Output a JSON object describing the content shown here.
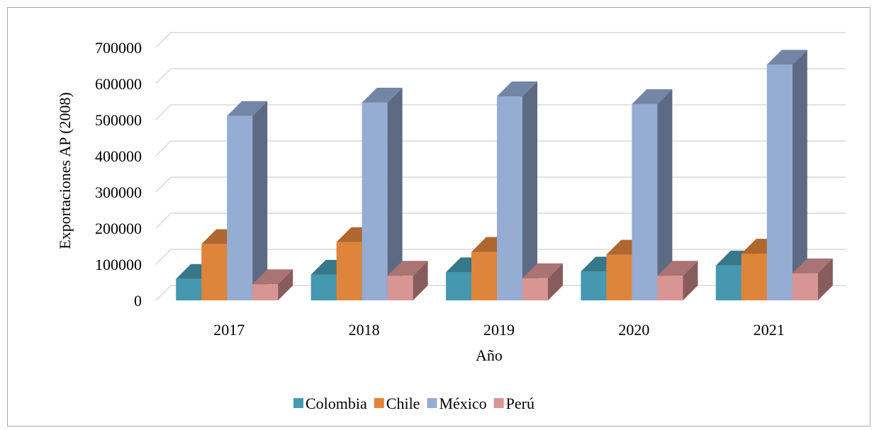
{
  "chart_data": {
    "type": "bar",
    "title": "",
    "xlabel": "Año",
    "ylabel": "Exportaciones AP (2008)",
    "categories": [
      "2017",
      "2018",
      "2019",
      "2020",
      "2021"
    ],
    "ylim": [
      0,
      700000
    ],
    "yticks": [
      "0",
      "100000",
      "200000",
      "300000",
      "400000",
      "500000",
      "600000",
      "700000"
    ],
    "grid": true,
    "legend_position": "bottom",
    "style": "3d-clustered-column",
    "series": [
      {
        "name": "Colombia",
        "color": "#4598b0",
        "values": [
          61000,
          73000,
          80000,
          82000,
          99000
        ]
      },
      {
        "name": "Chile",
        "color": "#df843b",
        "values": [
          160000,
          166000,
          138000,
          130000,
          133000
        ]
      },
      {
        "name": "México",
        "color": "#95acd3",
        "values": [
          525000,
          563000,
          581000,
          559000,
          671000
        ]
      },
      {
        "name": "Perú",
        "color": "#d99594",
        "values": [
          46000,
          70000,
          63000,
          70000,
          77000
        ]
      }
    ]
  }
}
